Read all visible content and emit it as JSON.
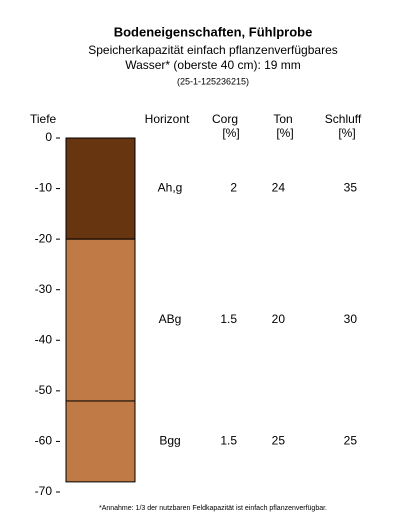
{
  "chart_data": {
    "type": "soil-profile",
    "title": "Bodeneigenschaften, Fühlprobe",
    "subtitle": [
      "Speicherkapazität einfach pflanzenverfügbares",
      "Wasser* (oberste 40 cm): 19 mm"
    ],
    "id_label": "(25-1-125236215)",
    "y_label": "Tiefe",
    "horizon_header": "Horizont",
    "columns": [
      {
        "key": "corg",
        "label": "Corg",
        "unit": "[%]"
      },
      {
        "key": "ton",
        "label": "Ton",
        "unit": "[%]"
      },
      {
        "key": "schluff",
        "label": "Schluff",
        "unit": "[%]"
      }
    ],
    "layers": [
      {
        "name": "Ah,g",
        "top": 0,
        "bottom": -20,
        "color": "#673510",
        "corg": 2,
        "ton": 24,
        "schluff": 35
      },
      {
        "name": "ABg",
        "top": -20,
        "bottom": -52,
        "color": "#c07a45",
        "corg": 1.5,
        "ton": 20,
        "schluff": 30
      },
      {
        "name": "Bgg",
        "top": -52,
        "bottom": -68,
        "color": "#c07a45",
        "corg": 1.5,
        "ton": 25,
        "schluff": 25
      }
    ],
    "ylim": [
      0,
      -70
    ],
    "yticks": [
      0,
      -10,
      -20,
      -30,
      -40,
      -50,
      -60,
      -70
    ],
    "footnote": "*Annahme: 1/3 der nutzbaren Feldkapazität ist einfach pflanzenverfügbar."
  }
}
